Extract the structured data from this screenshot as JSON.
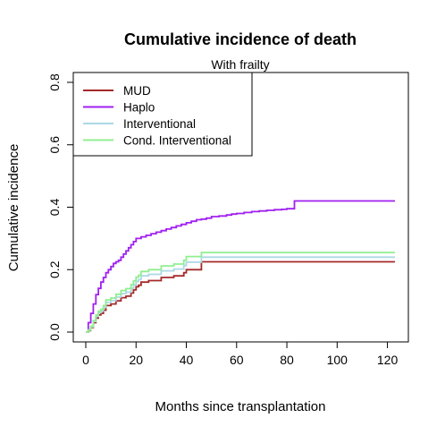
{
  "chart_data": {
    "type": "line",
    "title": "Cumulative incidence of death",
    "subtitle": "With frailty",
    "xlabel": "Months since transplantation",
    "ylabel": "Cumulative incidence",
    "xlim": [
      0,
      123
    ],
    "ylim": [
      0,
      0.8
    ],
    "xticks": [
      "0",
      "20",
      "40",
      "60",
      "80",
      "100",
      "120"
    ],
    "yticks": [
      "0.0",
      "0.2",
      "0.4",
      "0.6",
      "0.8"
    ],
    "legend_position": "top-left",
    "grid": false,
    "series": [
      {
        "name": "MUD",
        "color": "#a52a2a",
        "step": true,
        "x": [
          0,
          1,
          2,
          3,
          4,
          5,
          6,
          7,
          8,
          10,
          12,
          14,
          16,
          18,
          19,
          20,
          21,
          22,
          25,
          30,
          35,
          39,
          40,
          46,
          50,
          60,
          80,
          100,
          123
        ],
        "y": [
          0.0,
          0.005,
          0.015,
          0.03,
          0.045,
          0.055,
          0.06,
          0.07,
          0.085,
          0.09,
          0.1,
          0.11,
          0.115,
          0.125,
          0.135,
          0.145,
          0.15,
          0.16,
          0.165,
          0.175,
          0.18,
          0.19,
          0.2,
          0.225,
          0.225,
          0.225,
          0.225,
          0.225,
          0.225
        ]
      },
      {
        "name": "Haplo",
        "color": "#a020f0",
        "step": true,
        "x": [
          0,
          1,
          2,
          3,
          4,
          5,
          6,
          7,
          8,
          9,
          10,
          11,
          12,
          13,
          14,
          15,
          16,
          17,
          18,
          19,
          20,
          22,
          24,
          26,
          28,
          30,
          32,
          34,
          36,
          38,
          40,
          42,
          44,
          46,
          48,
          50,
          53,
          56,
          58,
          60,
          63,
          66,
          69,
          72,
          75,
          78,
          80,
          83,
          90,
          100,
          110,
          123
        ],
        "y": [
          0.0,
          0.03,
          0.06,
          0.09,
          0.12,
          0.14,
          0.16,
          0.175,
          0.19,
          0.2,
          0.21,
          0.22,
          0.225,
          0.23,
          0.24,
          0.25,
          0.26,
          0.27,
          0.28,
          0.29,
          0.3,
          0.305,
          0.31,
          0.315,
          0.32,
          0.325,
          0.33,
          0.335,
          0.34,
          0.345,
          0.35,
          0.355,
          0.36,
          0.362,
          0.365,
          0.37,
          0.372,
          0.375,
          0.378,
          0.38,
          0.383,
          0.386,
          0.388,
          0.39,
          0.392,
          0.393,
          0.395,
          0.42,
          0.42,
          0.42,
          0.42,
          0.42
        ]
      },
      {
        "name": "Interventional",
        "color": "#add8e6",
        "step": true,
        "x": [
          0,
          1,
          2,
          3,
          4,
          5,
          6,
          7,
          8,
          10,
          12,
          14,
          16,
          18,
          19,
          20,
          21,
          22,
          25,
          30,
          35,
          39,
          40,
          46,
          50,
          60,
          80,
          100,
          123
        ],
        "y": [
          0.0,
          0.006,
          0.017,
          0.034,
          0.05,
          0.062,
          0.068,
          0.079,
          0.095,
          0.101,
          0.112,
          0.123,
          0.128,
          0.14,
          0.151,
          0.162,
          0.168,
          0.18,
          0.185,
          0.196,
          0.202,
          0.213,
          0.224,
          0.24,
          0.24,
          0.24,
          0.24,
          0.24,
          0.24
        ]
      },
      {
        "name": "Cond. Interventional",
        "color": "#90ee90",
        "step": true,
        "x": [
          0,
          1,
          2,
          3,
          4,
          5,
          6,
          7,
          8,
          10,
          12,
          14,
          16,
          18,
          19,
          20,
          21,
          22,
          25,
          30,
          35,
          39,
          40,
          46,
          50,
          60,
          80,
          100,
          123
        ],
        "y": [
          0.0,
          0.007,
          0.019,
          0.037,
          0.055,
          0.067,
          0.073,
          0.085,
          0.103,
          0.109,
          0.121,
          0.133,
          0.139,
          0.152,
          0.164,
          0.176,
          0.182,
          0.194,
          0.2,
          0.212,
          0.218,
          0.23,
          0.242,
          0.255,
          0.255,
          0.255,
          0.255,
          0.255,
          0.255
        ]
      }
    ]
  }
}
